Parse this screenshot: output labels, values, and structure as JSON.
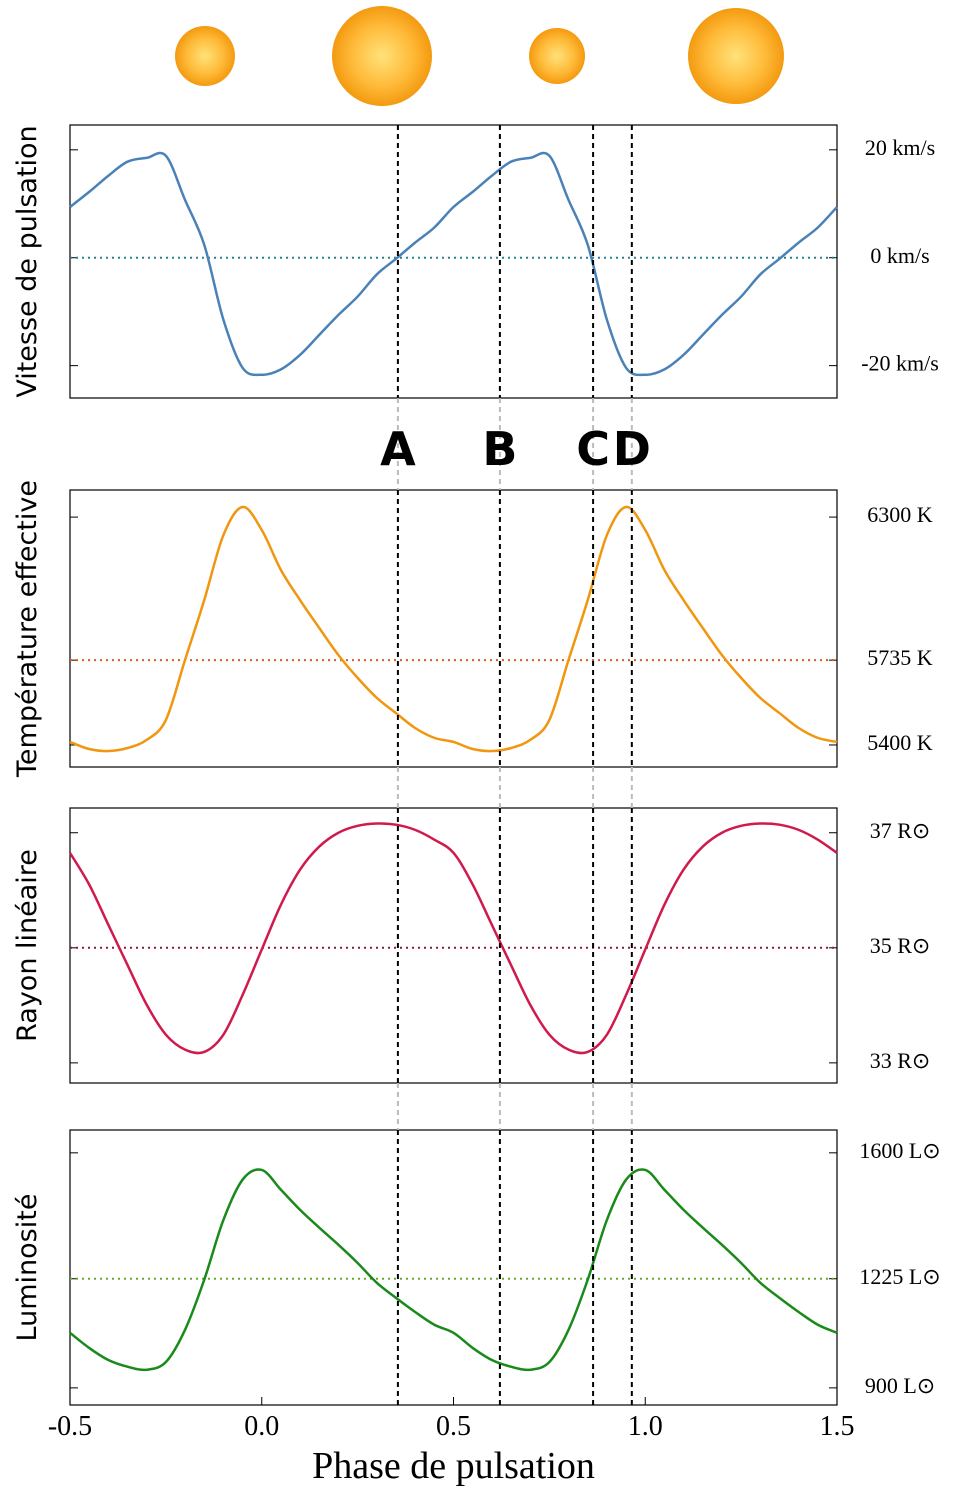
{
  "chart_data": [
    {
      "type": "line",
      "ylabel": "Vitesse de pulsation",
      "x": [
        -0.5,
        -0.45,
        -0.4,
        -0.35,
        -0.3,
        -0.25,
        -0.2,
        -0.15,
        -0.1,
        -0.05,
        0,
        0.05,
        0.1,
        0.15,
        0.2,
        0.25,
        0.3,
        0.35,
        0.4,
        0.45,
        0.5,
        0.55,
        0.6,
        0.65,
        0.7,
        0.75,
        0.8,
        0.85,
        0.9,
        0.95,
        1,
        1.05,
        1.1,
        1.15,
        1.2,
        1.25,
        1.3,
        1.35,
        1.4,
        1.45,
        1.5
      ],
      "series": [
        {
          "color": "#4a82b8",
          "values": [
            9.4,
            12.2,
            15.2,
            17.8,
            18.5,
            18.9,
            10.7,
            2.4,
            -11.5,
            -20.4,
            -21.7,
            -20.7,
            -18,
            -14.3,
            -10.6,
            -7.2,
            -3.1,
            -0.2,
            2.8,
            5.6,
            9.4,
            12.2,
            15.2,
            17.8,
            18.5,
            18.9,
            10.7,
            2.4,
            -11.5,
            -20.4,
            -21.7,
            -20.7,
            -18,
            -14.3,
            -10.6,
            -7.2,
            -3.1,
            -0.2,
            2.8,
            5.6,
            9.4
          ]
        }
      ],
      "mean": 0,
      "mean_color": "#2a7f8f",
      "xlim": [
        -0.5,
        1.5
      ],
      "ylim": [
        -26,
        24.6
      ],
      "yticks": [
        {
          "value": 20,
          "label": "20 km/s"
        },
        {
          "value": 0,
          "label": "0 km/s"
        },
        {
          "value": -20,
          "label": "-20 km/s"
        }
      ]
    },
    {
      "type": "line",
      "ylabel": "Température effective",
      "x": [
        -0.5,
        -0.45,
        -0.4,
        -0.35,
        -0.3,
        -0.25,
        -0.2,
        -0.15,
        -0.1,
        -0.05,
        0,
        0.05,
        0.1,
        0.15,
        0.2,
        0.25,
        0.3,
        0.35,
        0.4,
        0.45,
        0.5,
        0.55,
        0.6,
        0.65,
        0.7,
        0.75,
        0.8,
        0.85,
        0.9,
        0.95,
        1,
        1.05,
        1.1,
        1.15,
        1.2,
        1.25,
        1.3,
        1.35,
        1.4,
        1.45,
        1.5
      ],
      "series": [
        {
          "color": "#f0960f",
          "values": [
            5412,
            5384,
            5376,
            5388,
            5420,
            5499,
            5736,
            5972,
            6229,
            6340,
            6249,
            6091,
            5972,
            5862,
            5755,
            5665,
            5586,
            5526,
            5467,
            5428,
            5412,
            5384,
            5376,
            5388,
            5420,
            5499,
            5736,
            5972,
            6229,
            6340,
            6249,
            6091,
            5972,
            5862,
            5755,
            5665,
            5586,
            5526,
            5467,
            5428,
            5412
          ]
        }
      ],
      "mean": 5735,
      "mean_color": "#e0561a",
      "xlim": [
        -0.5,
        1.5
      ],
      "ylim": [
        5313,
        6407
      ],
      "yticks": [
        {
          "value": 6300,
          "label": "6300 K"
        },
        {
          "value": 5735,
          "label": "5735 K"
        },
        {
          "value": 5400,
          "label": "5400 K"
        }
      ]
    },
    {
      "type": "line",
      "ylabel": "Rayon linéaire",
      "x": [
        -0.5,
        -0.45,
        -0.4,
        -0.35,
        -0.3,
        -0.25,
        -0.2,
        -0.15,
        -0.1,
        -0.05,
        0,
        0.05,
        0.1,
        0.15,
        0.2,
        0.25,
        0.3,
        0.35,
        0.4,
        0.45,
        0.5,
        0.55,
        0.6,
        0.65,
        0.7,
        0.75,
        0.8,
        0.85,
        0.9,
        0.95,
        1,
        1.05,
        1.1,
        1.15,
        1.2,
        1.25,
        1.3,
        1.35,
        1.4,
        1.45,
        1.5
      ],
      "series": [
        {
          "color": "#d01a4c",
          "values": [
            36.65,
            36.1,
            35.4,
            34.7,
            34.01,
            33.49,
            33.23,
            33.19,
            33.49,
            34.18,
            34.97,
            35.75,
            36.36,
            36.76,
            37,
            37.12,
            37.16,
            37.14,
            37.05,
            36.88,
            36.65,
            36.1,
            35.4,
            34.7,
            34.01,
            33.49,
            33.23,
            33.19,
            33.49,
            34.18,
            34.97,
            35.75,
            36.36,
            36.76,
            37,
            37.12,
            37.16,
            37.14,
            37.05,
            36.88,
            36.65
          ]
        }
      ],
      "mean": 35,
      "mean_color": "#8a1a3c",
      "xlim": [
        -0.5,
        1.5
      ],
      "ylim": [
        32.65,
        37.43
      ],
      "yticks": [
        {
          "value": 37,
          "label": "37 R⊙"
        },
        {
          "value": 35,
          "label": "35 R⊙"
        },
        {
          "value": 33,
          "label": "33 R⊙"
        }
      ]
    },
    {
      "type": "line",
      "ylabel": "Luminosité",
      "xlabel": "Phase de pulsation",
      "x": [
        -0.5,
        -0.45,
        -0.4,
        -0.35,
        -0.3,
        -0.25,
        -0.2,
        -0.15,
        -0.1,
        -0.05,
        0,
        0.05,
        0.1,
        0.15,
        0.2,
        0.25,
        0.3,
        0.35,
        0.4,
        0.45,
        0.5,
        0.55,
        0.6,
        0.65,
        0.7,
        0.75,
        0.8,
        0.85,
        0.9,
        0.95,
        1,
        1.05,
        1.1,
        1.15,
        1.2,
        1.25,
        1.3,
        1.35,
        1.4,
        1.45,
        1.5
      ],
      "series": [
        {
          "color": "#1a8a1a",
          "values": [
            1064,
            1019,
            983,
            963,
            954,
            977,
            1073,
            1222,
            1400,
            1520,
            1549,
            1490,
            1430,
            1377,
            1326,
            1272,
            1213,
            1168,
            1126,
            1088,
            1064,
            1019,
            983,
            963,
            954,
            977,
            1073,
            1222,
            1400,
            1520,
            1549,
            1490,
            1430,
            1377,
            1326,
            1272,
            1213,
            1168,
            1126,
            1088,
            1064
          ]
        }
      ],
      "mean": 1225,
      "mean_color": "#6aa82a",
      "xlim": [
        -0.5,
        1.5
      ],
      "ylim": [
        849,
        1668
      ],
      "yticks": [
        {
          "value": 1600,
          "label": "1600 L⊙"
        },
        {
          "value": 1225,
          "label": "1225 L⊙"
        },
        {
          "value": 900,
          "label": "900 L⊙"
        }
      ],
      "xticks": [
        -0.5,
        {
          "value": 0,
          "label": "0.0"
        },
        0.5,
        {
          "value": 1,
          "label": "1.0"
        },
        1.5
      ]
    }
  ],
  "markers": [
    {
      "label": "A",
      "x": 0.355
    },
    {
      "label": "B",
      "x": 0.621
    },
    {
      "label": "C",
      "x": 0.864
    },
    {
      "label": "D",
      "x": 0.965
    }
  ]
}
